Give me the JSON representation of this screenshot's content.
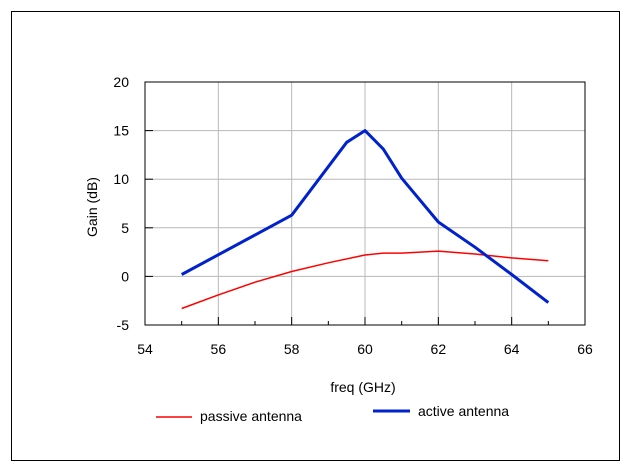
{
  "chart_data": {
    "type": "line",
    "xlabel": "freq (GHz)",
    "ylabel": "Gain (dB)",
    "xlim": [
      54,
      66
    ],
    "ylim": [
      -5,
      20
    ],
    "xticks": [
      54,
      56,
      58,
      60,
      62,
      64,
      66
    ],
    "yticks": [
      -5,
      0,
      5,
      10,
      15,
      20
    ],
    "xtick_labels": [
      "54",
      "56",
      "58",
      "60",
      "62",
      "64",
      "66"
    ],
    "ytick_labels": [
      "-5",
      "0",
      "5",
      "10",
      "15",
      "20"
    ],
    "grid": true,
    "legend_position": "bottom",
    "series": [
      {
        "name": "passive antenna",
        "color": "#ff0000",
        "x": [
          55,
          56,
          57,
          58,
          59,
          60,
          60.5,
          61,
          62,
          63,
          64,
          65
        ],
        "y": [
          -3.3,
          -1.9,
          -0.6,
          0.5,
          1.4,
          2.2,
          2.4,
          2.4,
          2.6,
          2.3,
          1.9,
          1.6
        ]
      },
      {
        "name": "active antenna",
        "color": "#0022cc",
        "x": [
          55,
          58,
          59.5,
          60,
          60.5,
          61,
          62,
          63,
          64,
          65
        ],
        "y": [
          0.2,
          6.3,
          13.8,
          15.0,
          13.1,
          10.1,
          5.6,
          3.0,
          0.2,
          -2.7
        ]
      }
    ]
  }
}
